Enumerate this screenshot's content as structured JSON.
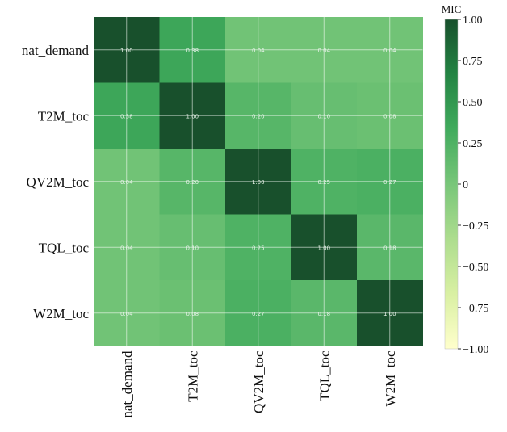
{
  "chart_data": {
    "type": "heatmap",
    "title": "",
    "xlabel": "",
    "ylabel": "",
    "rows": [
      "nat_demand",
      "T2M_toc",
      "QV2M_toc",
      "TQL_toc",
      "W2M_toc"
    ],
    "columns": [
      "nat_demand",
      "T2M_toc",
      "QV2M_toc",
      "TQL_toc",
      "W2M_toc"
    ],
    "values": [
      [
        1.0,
        0.38,
        0.04,
        0.04,
        0.04
      ],
      [
        0.38,
        1.0,
        0.2,
        0.1,
        0.08
      ],
      [
        0.04,
        0.2,
        1.0,
        0.25,
        0.27
      ],
      [
        0.04,
        0.1,
        0.25,
        1.0,
        0.18
      ],
      [
        0.04,
        0.08,
        0.27,
        0.18,
        1.0
      ]
    ],
    "cell_labels": [
      [
        "1.00",
        "0.38",
        "0.04",
        "0.04",
        "0.04"
      ],
      [
        "0.38",
        "1.00",
        "0.20",
        "0.10",
        "0.08"
      ],
      [
        "0.04",
        "0.20",
        "1.00",
        "0.25",
        "0.27"
      ],
      [
        "0.04",
        "0.10",
        "0.25",
        "1.00",
        "0.18"
      ],
      [
        "0.04",
        "0.08",
        "0.27",
        "0.18",
        "1.00"
      ]
    ],
    "colorbar": {
      "label": "MIC",
      "range": [
        -1.0,
        1.0
      ],
      "ticks": [
        "1.00",
        "0.75",
        "0.50",
        "0.25",
        "0",
        "−0.25",
        "−0.50",
        "−0.75",
        "−1.00"
      ],
      "tick_values": [
        1.0,
        0.75,
        0.5,
        0.25,
        0,
        -0.25,
        -0.5,
        -0.75,
        -1.0
      ],
      "colors": [
        "#ffffcc",
        "#d9f0a3",
        "#addd8e",
        "#78c679",
        "#41ab5d",
        "#238443",
        "#18502c"
      ]
    },
    "grid": true
  }
}
